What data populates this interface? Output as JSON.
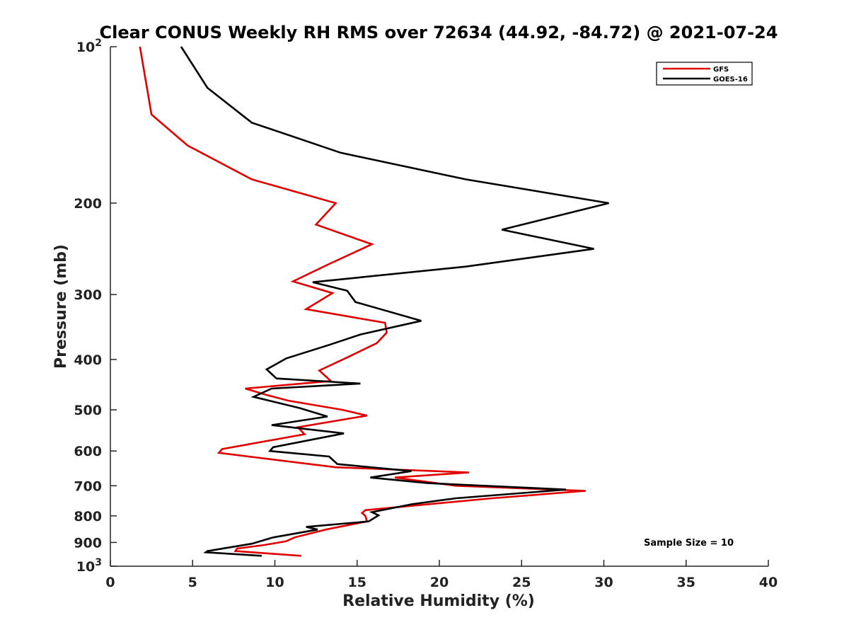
{
  "chart_data": {
    "type": "line",
    "title": "Clear CONUS Weekly RH RMS over 72634 (44.92, -84.72) @ 2021-07-24",
    "xlabel": "Relative Humidity (%)",
    "ylabel": "Pressure (mb)",
    "xlim": [
      0,
      40
    ],
    "ylim": [
      1000,
      100
    ],
    "yscale": "log",
    "x_ticks": [
      0,
      5,
      10,
      15,
      20,
      25,
      30,
      35,
      40
    ],
    "y_ticks": [
      {
        "value": 100,
        "base": "10",
        "exp": "2"
      },
      {
        "value": 200,
        "label": "200"
      },
      {
        "value": 300,
        "label": "300"
      },
      {
        "value": 400,
        "label": "400"
      },
      {
        "value": 500,
        "label": "500"
      },
      {
        "value": 600,
        "label": "600"
      },
      {
        "value": 700,
        "label": "700"
      },
      {
        "value": 800,
        "label": "800"
      },
      {
        "value": 900,
        "label": "900"
      },
      {
        "value": 1000,
        "base": "10",
        "exp": "3"
      }
    ],
    "grid": false,
    "legend_position": "top-right",
    "series": [
      {
        "name": "GFS",
        "color": "#e00000",
        "points": [
          [
            1.8,
            100
          ],
          [
            2.5,
            135
          ],
          [
            4.7,
            155
          ],
          [
            8.6,
            180
          ],
          [
            13.7,
            200
          ],
          [
            12.5,
            220
          ],
          [
            15.9,
            240
          ],
          [
            13.3,
            262
          ],
          [
            11.1,
            283
          ],
          [
            13.5,
            298
          ],
          [
            11.9,
            320
          ],
          [
            16.7,
            340
          ],
          [
            16.8,
            355
          ],
          [
            16.2,
            372
          ],
          [
            14.5,
            395
          ],
          [
            12.7,
            420
          ],
          [
            13.4,
            440
          ],
          [
            8.2,
            455
          ],
          [
            9.5,
            468
          ],
          [
            10.8,
            480
          ],
          [
            14.1,
            500
          ],
          [
            15.6,
            513
          ],
          [
            11.4,
            540
          ],
          [
            11.8,
            557
          ],
          [
            6.8,
            595
          ],
          [
            6.6,
            605
          ],
          [
            13.7,
            645
          ],
          [
            21.8,
            660
          ],
          [
            17.3,
            675
          ],
          [
            21.0,
            700
          ],
          [
            28.9,
            716
          ],
          [
            23.2,
            740
          ],
          [
            15.5,
            780
          ],
          [
            15.3,
            790
          ],
          [
            15.5,
            800
          ],
          [
            15.6,
            820
          ],
          [
            13.1,
            850
          ],
          [
            11.2,
            880
          ],
          [
            10.7,
            895
          ],
          [
            9.4,
            910
          ],
          [
            7.7,
            925
          ],
          [
            7.6,
            935
          ],
          [
            11.6,
            955
          ]
        ]
      },
      {
        "name": "GOES-16",
        "color": "#000000",
        "points": [
          [
            4.3,
            100
          ],
          [
            5.9,
            120
          ],
          [
            8.6,
            140
          ],
          [
            14.0,
            160
          ],
          [
            21.6,
            180
          ],
          [
            30.3,
            200
          ],
          [
            23.8,
            225
          ],
          [
            29.4,
            245
          ],
          [
            21.6,
            265
          ],
          [
            12.3,
            284
          ],
          [
            14.4,
            295
          ],
          [
            14.9,
            310
          ],
          [
            18.9,
            337
          ],
          [
            15.2,
            358
          ],
          [
            13.3,
            375
          ],
          [
            10.7,
            398
          ],
          [
            9.5,
            418
          ],
          [
            10.1,
            435
          ],
          [
            15.2,
            445
          ],
          [
            9.8,
            455
          ],
          [
            8.7,
            472
          ],
          [
            11.5,
            496
          ],
          [
            13.2,
            515
          ],
          [
            9.8,
            535
          ],
          [
            14.2,
            555
          ],
          [
            9.9,
            590
          ],
          [
            9.7,
            600
          ],
          [
            13.3,
            615
          ],
          [
            13.8,
            636
          ],
          [
            18.3,
            656
          ],
          [
            15.8,
            675
          ],
          [
            19.3,
            692
          ],
          [
            27.7,
            712
          ],
          [
            21.0,
            740
          ],
          [
            18.3,
            760
          ],
          [
            15.9,
            787
          ],
          [
            16.3,
            798
          ],
          [
            15.7,
            820
          ],
          [
            11.9,
            840
          ],
          [
            12.6,
            850
          ],
          [
            9.9,
            880
          ],
          [
            8.6,
            905
          ],
          [
            5.9,
            935
          ],
          [
            5.8,
            940
          ],
          [
            9.2,
            955
          ]
        ]
      }
    ],
    "annotations": [
      "Sample Size = 10"
    ]
  }
}
